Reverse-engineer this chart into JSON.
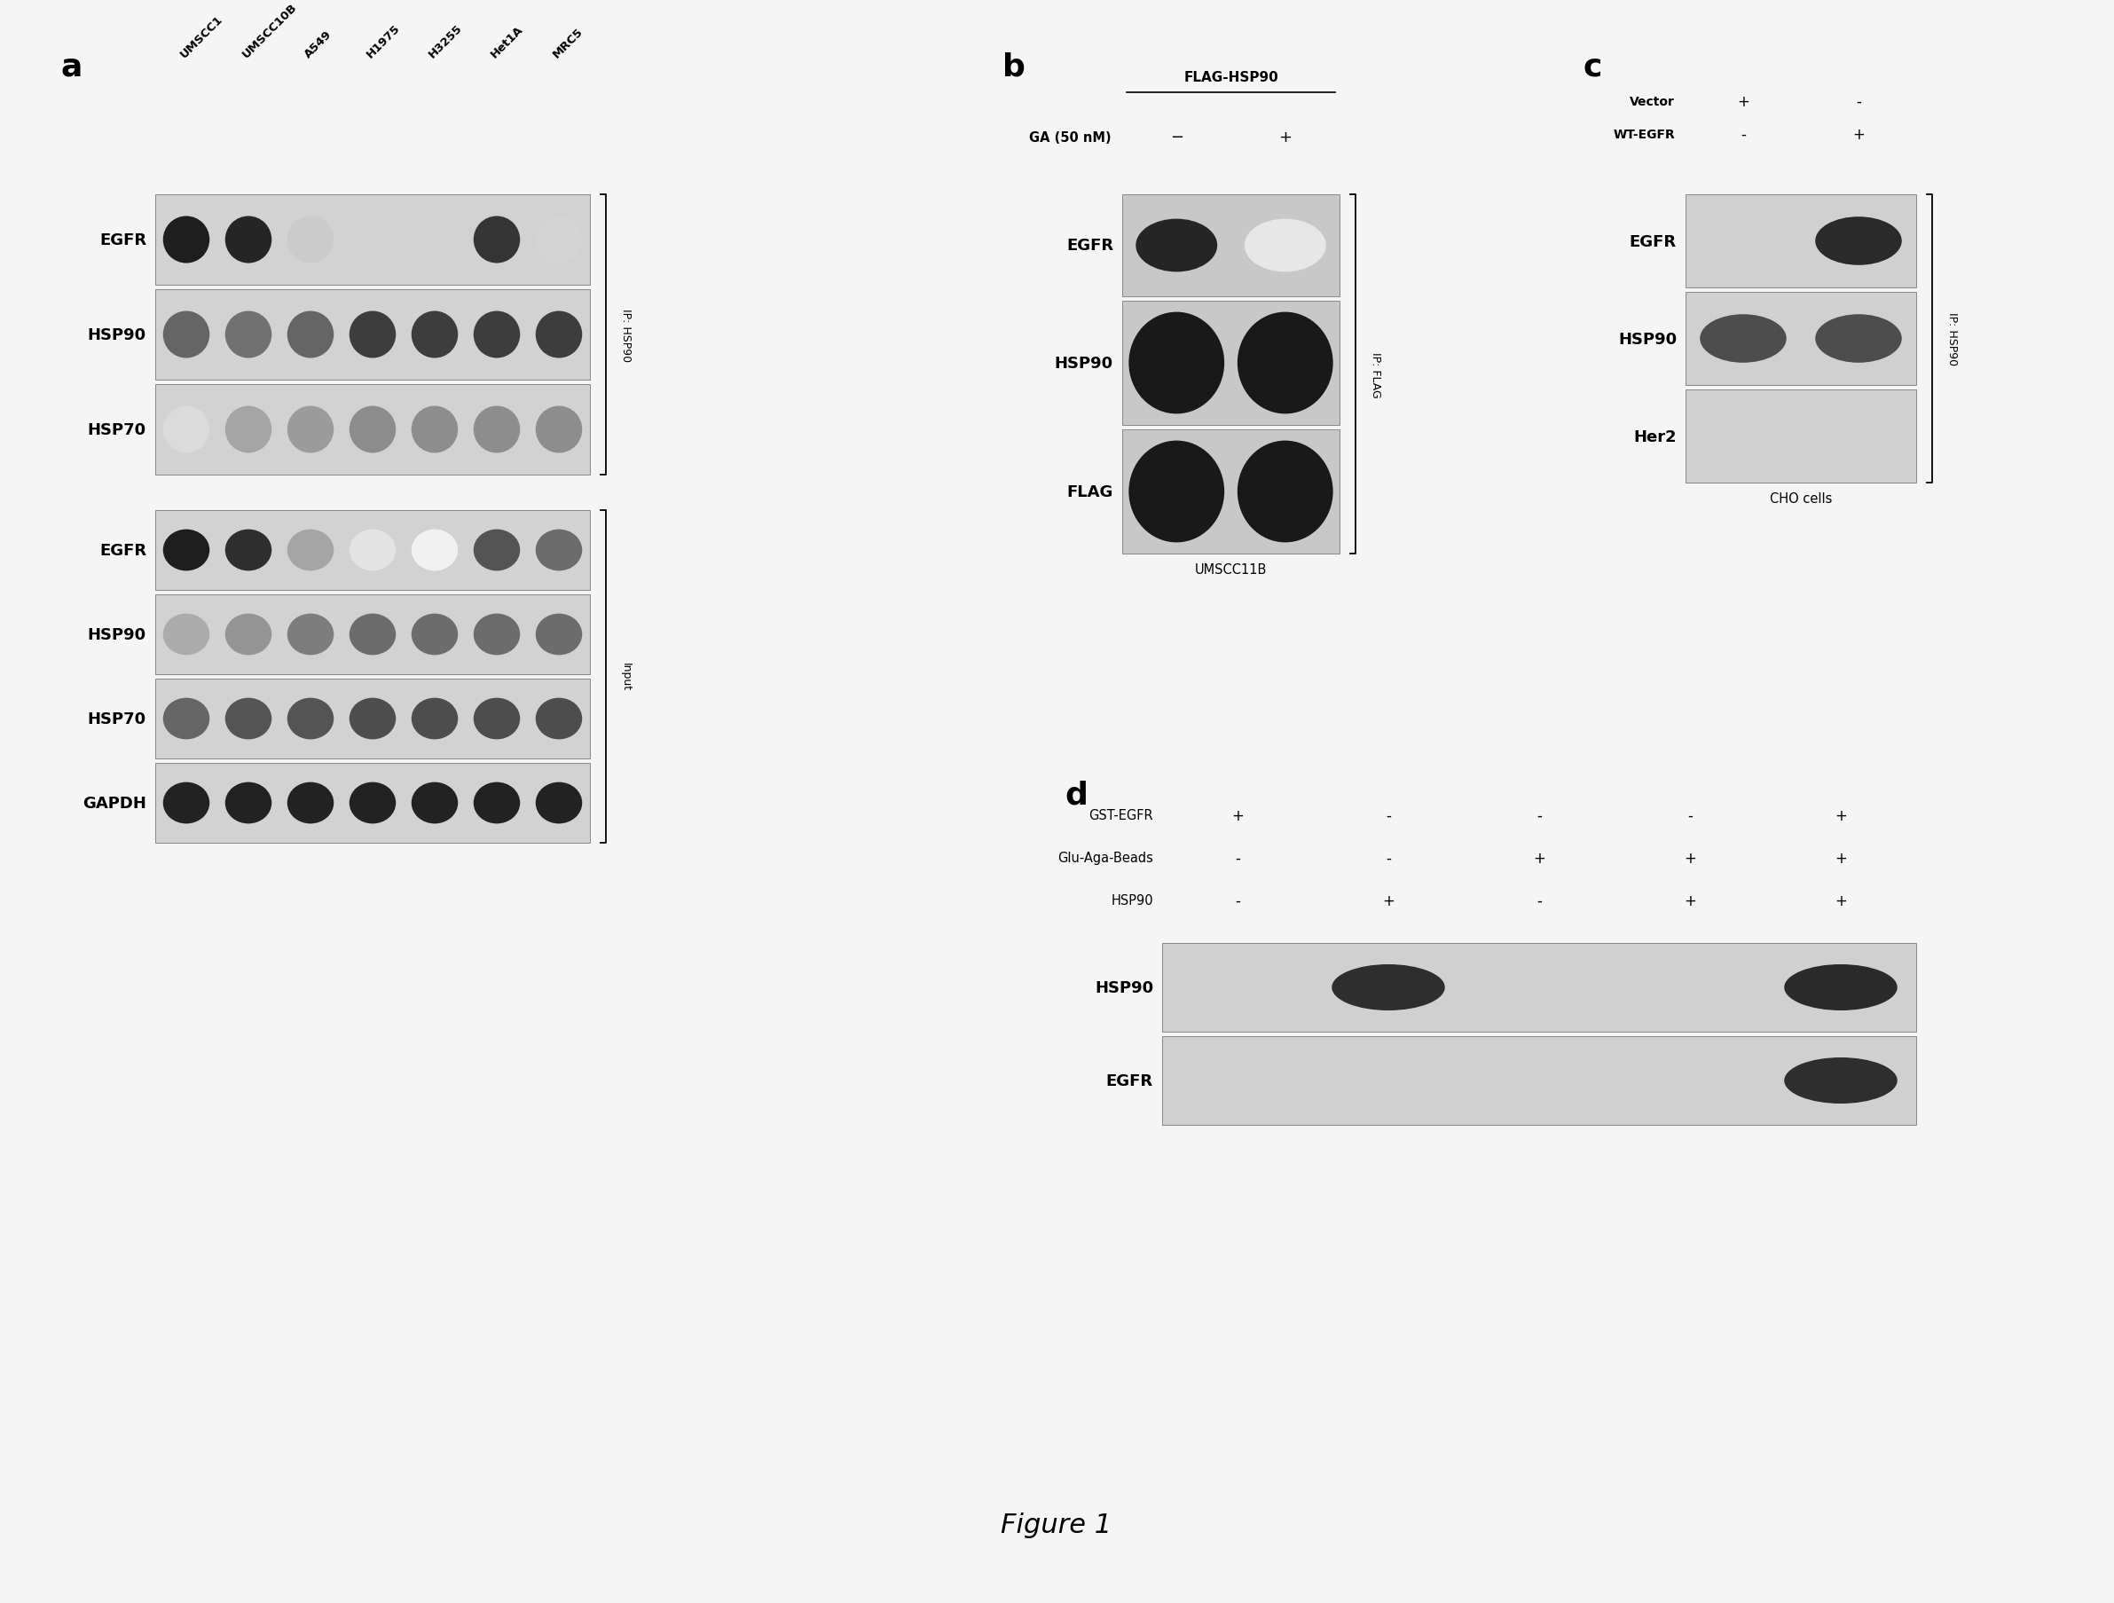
{
  "title": "Figure 1",
  "bg_color": "#f5f5f5",
  "panel_bg_light": "#d0d0d0",
  "panel_bg_dark": "#b8b8b8",
  "panel_a": {
    "label": "a",
    "col_labels": [
      "UMSCC1",
      "UMSCC10B",
      "A549",
      "H1975",
      "H3255",
      "Het1A",
      "MRC5"
    ],
    "ip_label": "IP: HSP90",
    "input_label": "Input",
    "ip_rows": [
      "EGFR",
      "HSP90",
      "HSP70"
    ],
    "input_rows": [
      "EGFR",
      "HSP90",
      "HSP70",
      "GAPDH"
    ],
    "ip_egfr_bands": [
      0.95,
      0.92,
      0.22,
      0.0,
      0.0,
      0.85,
      0.18
    ],
    "ip_hsp90_bands": [
      0.65,
      0.6,
      0.65,
      0.82,
      0.82,
      0.82,
      0.82
    ],
    "ip_hsp70_bands": [
      0.15,
      0.38,
      0.42,
      0.48,
      0.48,
      0.48,
      0.48
    ],
    "input_egfr_bands": [
      0.95,
      0.88,
      0.38,
      0.12,
      0.06,
      0.72,
      0.62
    ],
    "input_hsp90_bands": [
      0.35,
      0.45,
      0.55,
      0.62,
      0.62,
      0.62,
      0.62
    ],
    "input_hsp70_bands": [
      0.65,
      0.72,
      0.72,
      0.75,
      0.75,
      0.75,
      0.75
    ],
    "input_gapdh_bands": [
      0.93,
      0.93,
      0.93,
      0.93,
      0.93,
      0.93,
      0.93
    ]
  },
  "panel_b": {
    "label": "b",
    "header": "FLAG-HSP90",
    "ga_label": "GA (50 nM)",
    "col_labels": [
      "-",
      "+"
    ],
    "ip_label": "IP: FLAG",
    "cell_line": "UMSCC11B",
    "rows": [
      "EGFR",
      "HSP90",
      "FLAG"
    ],
    "egfr_bands": [
      0.92,
      0.1
    ],
    "hsp90_bands": [
      0.97,
      0.97
    ],
    "flag_bands": [
      0.97,
      0.97
    ]
  },
  "panel_c": {
    "label": "c",
    "ip_label": "IP: HSP90",
    "cell_line": "CHO cells",
    "rows": [
      "EGFR",
      "HSP90",
      "Her2"
    ],
    "col_labels": [
      "+/-",
      "-/+"
    ],
    "vector_signs": [
      "+",
      "-"
    ],
    "wtegfr_signs": [
      "-",
      "+"
    ],
    "egfr_bands": [
      0.0,
      0.9
    ],
    "hsp90_bands": [
      0.75,
      0.75
    ],
    "her2_bands": [
      0.0,
      0.0
    ]
  },
  "panel_d": {
    "label": "d",
    "rows_header": [
      "GST-EGFR",
      "Glu-Aga-Beads",
      "HSP90"
    ],
    "col_signs": [
      [
        "+",
        "-",
        "-",
        "-",
        "+"
      ],
      [
        "-",
        "-",
        "+",
        "+",
        "+"
      ],
      [
        "-",
        "+",
        "-",
        "+",
        "+"
      ]
    ],
    "rows": [
      "HSP90",
      "EGFR"
    ],
    "hsp90_bands": [
      0.0,
      0.88,
      0.0,
      0.0,
      0.9
    ],
    "egfr_bands": [
      0.0,
      0.0,
      0.0,
      0.0,
      0.88
    ]
  }
}
